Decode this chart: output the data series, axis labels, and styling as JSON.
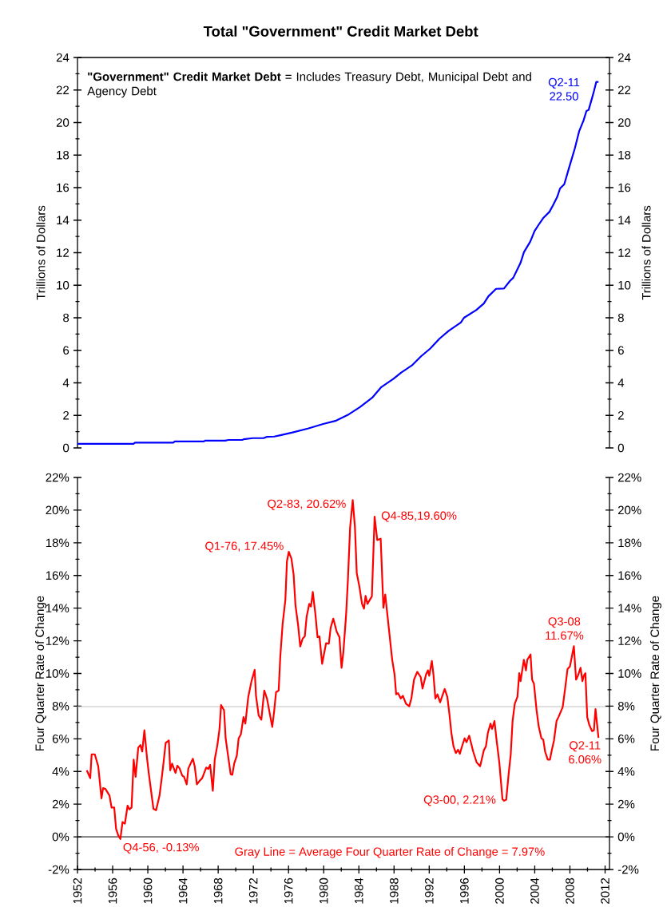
{
  "chart_data": [
    {
      "type": "line",
      "title": "Total \"Government\" Credit Market Debt",
      "ylabel": "Trillions of Dollars",
      "y2label": "Trillions of Dollars",
      "xlim": [
        1952,
        2012.5
      ],
      "ylim": [
        0,
        24
      ],
      "yticks": [
        0,
        2,
        4,
        6,
        8,
        10,
        12,
        14,
        16,
        18,
        20,
        22,
        24
      ],
      "y2lim": [
        0,
        24
      ],
      "y2ticks": [
        0,
        2,
        4,
        6,
        8,
        10,
        12,
        14,
        16,
        18,
        20,
        22,
        24
      ],
      "tick_labels": "y",
      "series": [
        {
          "color": "#0000ff",
          "x": [
            1952,
            1958.37,
            1958.54,
            1962.89,
            1963.06,
            1966.37,
            1966.54,
            1968.81,
            1969.15,
            1970.72,
            1970.89,
            1971.94,
            1973.16,
            1973.5,
            1974.37,
            1975.07,
            1976.46,
            1978.2,
            1979.94,
            1981.33,
            1982.72,
            1984.12,
            1985.51,
            1986.55,
            1987.94,
            1988.81,
            1990.03,
            1991.07,
            1992.12,
            1993.16,
            1994.21,
            1995.6,
            1995.95,
            1997.34,
            1998.21,
            1998.73,
            1999.6,
            2000.5,
            2001.17,
            2001.56,
            2002.38,
            2002.77,
            2003.49,
            2003.98,
            2004.46,
            2004.95,
            2005.67,
            2006.06,
            2006.55,
            2006.88,
            2007.36,
            2007.85,
            2008.57,
            2009.06,
            2009.55,
            2009.88,
            2010.13,
            2010.51,
            2010.75,
            2011.0,
            2011.25
          ],
          "values": [
            0.25,
            0.25,
            0.32,
            0.32,
            0.4,
            0.4,
            0.45,
            0.45,
            0.49,
            0.49,
            0.53,
            0.6,
            0.6,
            0.68,
            0.7,
            0.78,
            0.95,
            1.19,
            1.47,
            1.66,
            2.02,
            2.51,
            3.08,
            3.74,
            4.25,
            4.63,
            5.07,
            5.63,
            6.11,
            6.71,
            7.2,
            7.71,
            8.0,
            8.47,
            8.88,
            9.32,
            9.78,
            9.8,
            10.26,
            10.46,
            11.37,
            12.03,
            12.68,
            13.33,
            13.73,
            14.12,
            14.51,
            14.9,
            15.42,
            15.95,
            16.21,
            17.12,
            18.43,
            19.48,
            20.13,
            20.71,
            20.78,
            21.49,
            21.96,
            22.5,
            22.5
          ]
        }
      ],
      "annotations": [
        "**\"Government\" Credit Market Debt** = Includes Treasury Debt, Municipal Debt and Agency Debt",
        {
          "text": "Q2-11 22.50",
          "x": 2011.25,
          "y": 22.5
        }
      ]
    },
    {
      "type": "line",
      "ylabel": "Four Quarter Rate of Change",
      "y2label": "Four Quarter Rate of Change",
      "xlim": [
        1952,
        2012.5
      ],
      "xticks": [
        1952,
        1956,
        1960,
        1964,
        1968,
        1972,
        1976,
        1980,
        1984,
        1988,
        1992,
        1996,
        2000,
        2004,
        2008,
        2012
      ],
      "ylim": [
        -2,
        22
      ],
      "yticks": [
        {
          "value": -2,
          "label": "-2%"
        },
        {
          "value": 0,
          "label": "0%"
        },
        {
          "value": 2,
          "label": "2%"
        },
        {
          "value": 4,
          "label": "4%"
        },
        {
          "value": 6,
          "label": "6%"
        },
        {
          "value": 8,
          "label": "8%"
        },
        {
          "value": 10,
          "label": "10%"
        },
        {
          "value": 12,
          "label": "12%"
        },
        {
          "value": 14,
          "label": "14%"
        },
        {
          "value": 16,
          "label": "16%"
        },
        {
          "value": 18,
          "label": "18%"
        },
        {
          "value": 20,
          "label": "20%"
        },
        {
          "value": 22,
          "label": "22%"
        }
      ],
      "y2lim": [
        -2,
        22
      ],
      "y2ticks": [
        {
          "value": -2,
          "label": "-2%"
        },
        {
          "value": 0,
          "label": "0%"
        },
        {
          "value": 2,
          "label": "2%"
        },
        {
          "value": 4,
          "label": "4%"
        },
        {
          "value": 6,
          "label": "6%"
        },
        {
          "value": 8,
          "label": "8%"
        },
        {
          "value": 10,
          "label": "10%"
        },
        {
          "value": 12,
          "label": "12%"
        },
        {
          "value": 14,
          "label": "14%"
        },
        {
          "value": 16,
          "label": "16%"
        },
        {
          "value": 18,
          "label": "18%"
        },
        {
          "value": 20,
          "label": "20%"
        },
        {
          "value": 22,
          "label": "22%"
        }
      ],
      "ref_lines": [
        {
          "axis": "y",
          "value": 0,
          "color": "#000000"
        },
        {
          "axis": "y",
          "value": 7.97,
          "color": "#c0c0c0"
        }
      ],
      "series": [
        {
          "color": "#ff0000",
          "x": [
            1953.06,
            1953.45,
            1953.61,
            1953.97,
            1954.36,
            1954.73,
            1954.91,
            1955.18,
            1955.64,
            1955.88,
            1956.18,
            1956.39,
            1956.64,
            1956.88,
            1957.12,
            1957.39,
            1957.7,
            1957.91,
            1958.15,
            1958.39,
            1958.61,
            1958.91,
            1959.15,
            1959.36,
            1959.61,
            1959.91,
            1960.12,
            1960.36,
            1960.64,
            1960.94,
            1961.33,
            1961.58,
            1961.79,
            1962.03,
            1962.39,
            1962.55,
            1962.76,
            1963.15,
            1963.36,
            1963.61,
            1963.91,
            1964.12,
            1964.42,
            1964.61,
            1965.12,
            1965.33,
            1965.58,
            1965.88,
            1966.18,
            1966.64,
            1966.88,
            1967.09,
            1967.39,
            1967.61,
            1967.91,
            1968.15,
            1968.33,
            1968.67,
            1968.85,
            1969.06,
            1969.42,
            1969.61,
            1969.82,
            1970.12,
            1970.33,
            1970.58,
            1970.88,
            1971.09,
            1971.42,
            1971.79,
            1972.15,
            1972.3,
            1972.61,
            1972.91,
            1973.24,
            1973.55,
            1973.91,
            1974.15,
            1974.36,
            1974.58,
            1974.88,
            1975.06,
            1975.33,
            1975.64,
            1975.82,
            1976.03,
            1976.33,
            1976.58,
            1976.79,
            1977.09,
            1977.33,
            1977.61,
            1977.85,
            1978.06,
            1978.36,
            1978.55,
            1978.76,
            1979.06,
            1979.3,
            1979.52,
            1979.82,
            1980.27,
            1980.58,
            1980.79,
            1981.09,
            1981.48,
            1981.79,
            1982.03,
            1982.24,
            1982.55,
            1982.76,
            1983.0,
            1983.3,
            1983.55,
            1983.76,
            1984.06,
            1984.36,
            1984.58,
            1984.76,
            1984.97,
            1985.48,
            1985.79,
            1986.09,
            1986.48,
            1986.79,
            1987.0,
            1987.24,
            1987.79,
            1988.06,
            1988.24,
            1988.45,
            1988.76,
            1989.0,
            1989.36,
            1989.73,
            1989.97,
            1990.27,
            1990.64,
            1991.03,
            1991.24,
            1991.64,
            1991.85,
            1992.0,
            1992.3,
            1992.48,
            1992.7,
            1992.94,
            1993.24,
            1993.76,
            1994.06,
            1994.3,
            1994.52,
            1994.76,
            1995.03,
            1995.27,
            1995.48,
            1995.73,
            1996.03,
            1996.24,
            1996.55,
            1997.0,
            1997.39,
            1997.79,
            1998.21,
            1998.45,
            1998.67,
            1998.97,
            1999.15,
            1999.42,
            1999.67,
            1999.97,
            2000.33,
            2000.52,
            2000.76,
            2001.03,
            2001.27,
            2001.48,
            2001.73,
            2002.03,
            2002.24,
            2002.39,
            2002.76,
            2003.0,
            2003.15,
            2003.52,
            2003.7,
            2003.91,
            2004.21,
            2004.45,
            2004.76,
            2004.97,
            2005.18,
            2005.48,
            2005.73,
            2005.97,
            2006.18,
            2006.48,
            2006.7,
            2007.18,
            2007.45,
            2007.73,
            2008.0,
            2008.45,
            2008.7,
            2008.91,
            2009.21,
            2009.42,
            2009.58,
            2009.76,
            2009.97,
            2010.21,
            2010.52,
            2010.73,
            2010.91,
            2011.25
          ],
          "values": [
            4.07,
            3.59,
            5.05,
            5.05,
            4.32,
            2.36,
            2.98,
            2.93,
            2.53,
            1.79,
            1.79,
            0.49,
            0.08,
            -0.13,
            0.9,
            0.81,
            1.91,
            1.68,
            1.79,
            4.73,
            3.67,
            5.46,
            5.62,
            5.22,
            6.52,
            4.81,
            3.83,
            2.85,
            1.71,
            1.63,
            2.53,
            3.59,
            4.56,
            5.75,
            5.9,
            4.07,
            4.48,
            3.91,
            4.35,
            4.19,
            3.75,
            3.67,
            3.21,
            4.19,
            4.78,
            4.32,
            3.21,
            3.42,
            3.59,
            4.24,
            4.16,
            4.4,
            2.82,
            4.73,
            5.62,
            6.6,
            8.07,
            7.74,
            6.03,
            5.22,
            3.83,
            3.8,
            4.48,
            4.97,
            6.03,
            6.27,
            7.33,
            6.93,
            8.56,
            9.53,
            10.22,
            8.64,
            7.42,
            7.17,
            8.96,
            8.47,
            7.42,
            6.73,
            7.66,
            8.85,
            8.96,
            11.0,
            13.04,
            14.5,
            16.87,
            17.45,
            17.03,
            16.05,
            14.18,
            12.96,
            11.65,
            12.14,
            12.27,
            13.48,
            14.26,
            14.1,
            14.99,
            13.61,
            12.22,
            12.27,
            10.59,
            11.85,
            11.82,
            12.79,
            13.36,
            12.55,
            12.22,
            10.35,
            11.33,
            13.61,
            15.81,
            18.9,
            20.62,
            18.99,
            16.13,
            15.32,
            14.26,
            13.97,
            14.75,
            14.26,
            14.72,
            19.6,
            18.17,
            18.25,
            14.02,
            14.83,
            13.61,
            10.84,
            9.94,
            8.72,
            8.8,
            8.47,
            8.64,
            8.15,
            7.99,
            8.47,
            9.62,
            10.1,
            9.78,
            9.08,
            9.94,
            10.19,
            9.86,
            10.76,
            9.94,
            8.47,
            8.72,
            8.23,
            9.05,
            8.56,
            7.5,
            6.36,
            5.54,
            5.13,
            5.33,
            5.08,
            5.54,
            6.03,
            5.79,
            6.19,
            5.22,
            4.56,
            4.32,
            5.3,
            5.54,
            6.36,
            6.93,
            6.6,
            7.09,
            5.87,
            4.56,
            2.3,
            2.21,
            2.28,
            3.83,
            5.05,
            7.09,
            8.15,
            8.56,
            10.02,
            9.53,
            10.84,
            10.19,
            10.84,
            11.16,
            9.62,
            9.37,
            7.74,
            6.76,
            6.03,
            5.95,
            5.22,
            4.73,
            4.73,
            5.38,
            5.87,
            7.09,
            7.33,
            7.94,
            9.05,
            10.27,
            10.43,
            11.67,
            9.62,
            9.86,
            10.35,
            9.53,
            9.86,
            10.02,
            7.33,
            6.84,
            6.47,
            6.52,
            7.82,
            6.06
          ]
        }
      ],
      "annotations": [
        {
          "text": "Q4-56, -0.13%",
          "x": 1956.88,
          "y": -0.13
        },
        {
          "text": "Q1-76, 17.45%",
          "x": 1976.03,
          "y": 17.45
        },
        {
          "text": "Q2-83, 20.62%",
          "x": 1983.3,
          "y": 20.62
        },
        {
          "text": "Q4-85,19.60%",
          "x": 1985.79,
          "y": 19.6
        },
        {
          "text": "Q3-00, 2.21%",
          "x": 2000.52,
          "y": 2.21
        },
        {
          "text": "Q3-08 11.67%",
          "x": 2008.45,
          "y": 11.67
        },
        {
          "text": "Q2-11 6.06%",
          "x": 2011.25,
          "y": 6.06
        },
        "Gray Line = Average Four Quarter Rate of Change = 7.97%"
      ]
    }
  ]
}
